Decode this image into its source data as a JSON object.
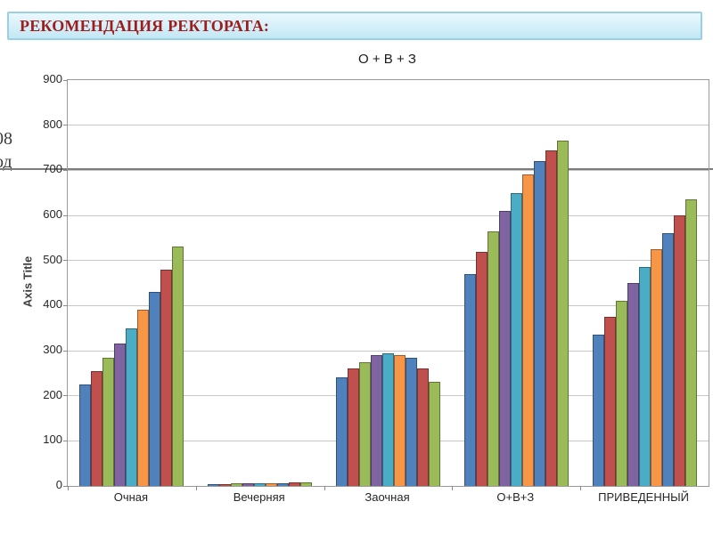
{
  "header": {
    "title": "РЕКОМЕНДАЦИЯ РЕКТОРАТА:",
    "text_color": "#9e1c1c",
    "bg_top": "#eaf8fd",
    "bg_bottom": "#c2e8f5",
    "border_color": "#9bcfe2"
  },
  "slide_fragments": {
    "line1": "08",
    "line2": "од"
  },
  "chart_data": {
    "type": "bar",
    "title": "О + В + З",
    "ylabel": "Axis Title",
    "ylim": [
      0,
      900
    ],
    "ytick_step": 100,
    "grid": true,
    "legend": "none",
    "categories": [
      "Очная",
      "Вечерняя",
      "Заочная",
      "О+В+З",
      "ПРИВЕДЕННЫЙ"
    ],
    "series": [
      {
        "color": "#4F81BD",
        "values": [
          225,
          4,
          240,
          470,
          335
        ]
      },
      {
        "color": "#C0504D",
        "values": [
          255,
          4,
          260,
          520,
          375
        ]
      },
      {
        "color": "#9BBB59",
        "values": [
          285,
          5,
          275,
          565,
          410
        ]
      },
      {
        "color": "#8064A2",
        "values": [
          315,
          5,
          290,
          610,
          450
        ]
      },
      {
        "color": "#4BACC6",
        "values": [
          350,
          5,
          295,
          650,
          485
        ]
      },
      {
        "color": "#F79646",
        "values": [
          390,
          6,
          290,
          690,
          525
        ]
      },
      {
        "color": "#4F81BD",
        "values": [
          430,
          6,
          285,
          720,
          560
        ]
      },
      {
        "color": "#C0504D",
        "values": [
          480,
          7,
          260,
          745,
          600
        ]
      },
      {
        "color": "#9BBB59",
        "values": [
          530,
          8,
          230,
          765,
          635
        ]
      }
    ]
  }
}
